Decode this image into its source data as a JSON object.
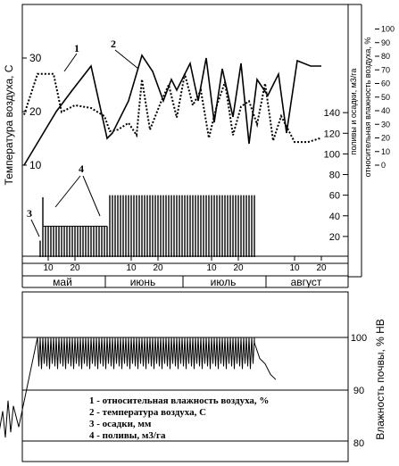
{
  "chart_data": [
    {
      "type": "line",
      "panel": "upper",
      "y_left": {
        "label": "Температура воздуха, С",
        "ticks": [
          10,
          20,
          30
        ]
      },
      "y_right_1": {
        "label": "поливы и осадки, м3/га",
        "ticks": [
          20,
          40,
          60,
          80,
          100,
          120,
          140
        ]
      },
      "y_right_2": {
        "label": "относительная влажность воздуха, %",
        "ticks": [
          0,
          10,
          20,
          30,
          40,
          50,
          60,
          70,
          80,
          90,
          100
        ]
      },
      "x_months": [
        "май",
        "июнь",
        "июль",
        "август"
      ],
      "x_day_ticks": [
        "10",
        "20",
        "10",
        "20",
        "10",
        "20",
        "10",
        "20"
      ],
      "series": [
        {
          "name": "1",
          "style": "dotted",
          "axis": "humidity_percent",
          "x_day": [
            1,
            6,
            12,
            15,
            20,
            26,
            31,
            33,
            36,
            40,
            43,
            45,
            48,
            52,
            55,
            58,
            61,
            64,
            67,
            70,
            73,
            76,
            79,
            82,
            85,
            88,
            91,
            94,
            97,
            102,
            107,
            112
          ],
          "y": [
            37,
            67,
            67,
            39,
            44,
            42,
            36,
            25,
            26,
            31,
            22,
            63,
            26,
            46,
            59,
            35,
            67,
            44,
            55,
            20,
            44,
            61,
            22,
            43,
            47,
            30,
            60,
            18,
            36,
            17,
            17,
            20
          ]
        },
        {
          "name": "2",
          "style": "solid",
          "axis": "temperature_C",
          "x_day": [
            1,
            7,
            13,
            19,
            26,
            32,
            34,
            40,
            45,
            49,
            53,
            56,
            58,
            63,
            66,
            69,
            72,
            75,
            79,
            82,
            85,
            88,
            92,
            96,
            99,
            103,
            108,
            112
          ],
          "y": [
            10,
            15,
            20,
            24,
            28.5,
            15,
            16,
            22,
            30.5,
            27.5,
            22,
            26,
            24,
            29,
            22,
            30,
            18,
            28,
            19,
            29,
            14,
            26,
            23,
            27,
            16,
            29.5,
            28.5,
            28.5
          ]
        }
      ],
      "bar_series": [
        {
          "name": "3",
          "label": "осадки, мм",
          "x_day": [
            7
          ],
          "values": [
            16
          ]
        },
        {
          "name": "4",
          "label": "поливы, м3/га",
          "x_day_start": 8,
          "x_day_end": 32,
          "step": 1,
          "value": 30
        },
        {
          "name": "4",
          "label": "поливы, м3/га",
          "x_day_start": 33,
          "x_day_end": 87,
          "step": 1,
          "value": 60
        }
      ],
      "annotations": [
        "1",
        "2",
        "3",
        "4"
      ]
    },
    {
      "type": "line",
      "panel": "lower",
      "y_right": {
        "label": "Влажность почвы, % НВ",
        "ticks": [
          80,
          90,
          100
        ]
      },
      "legend": [
        "1 - относительная влажность воздуха, %",
        "2 - температура воздуха, С",
        "3 - осадки, мм",
        "4 - поливы, м3/га"
      ],
      "series": [
        {
          "name": "soil_moisture",
          "description_of_motion": "oscillates between ~94 and ~100 % НВ from day 6 to day 87, then decays to ~92",
          "x_day_start": 6,
          "x_day_end": 87,
          "y_min": 94,
          "y_max": 100,
          "tail_x_day": [
            87,
            89,
            91,
            93,
            95
          ],
          "tail_y": [
            99,
            96,
            95,
            93,
            92
          ],
          "lead_x_day": [
            -9,
            -7,
            -6,
            -5,
            -4,
            -3,
            -1
          ],
          "lead_y": [
            80,
            86,
            81,
            88,
            82,
            87,
            83
          ]
        }
      ]
    }
  ]
}
